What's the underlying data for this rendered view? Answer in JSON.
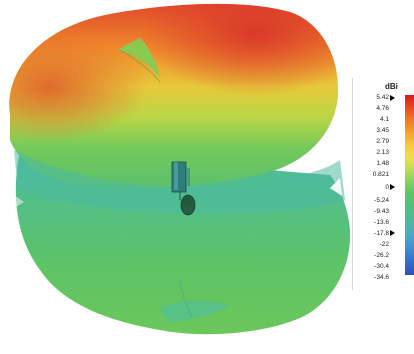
{
  "legend": {
    "unit": "dBi",
    "ticks": [
      "5.42",
      "4.76",
      "4.1",
      "3.45",
      "2.79",
      "2.13",
      "1.48",
      "0.821",
      "0",
      "-5.24",
      "-9.43",
      "-13.6",
      "-17.8",
      "-22",
      "-26.2",
      "-30.4",
      "-34.6"
    ],
    "marker_values": [
      "5.42",
      "0",
      "-17.8"
    ]
  },
  "colors": {
    "max": "#d7191c",
    "mid": "#5ec665",
    "min": "#2a4fbf"
  }
}
